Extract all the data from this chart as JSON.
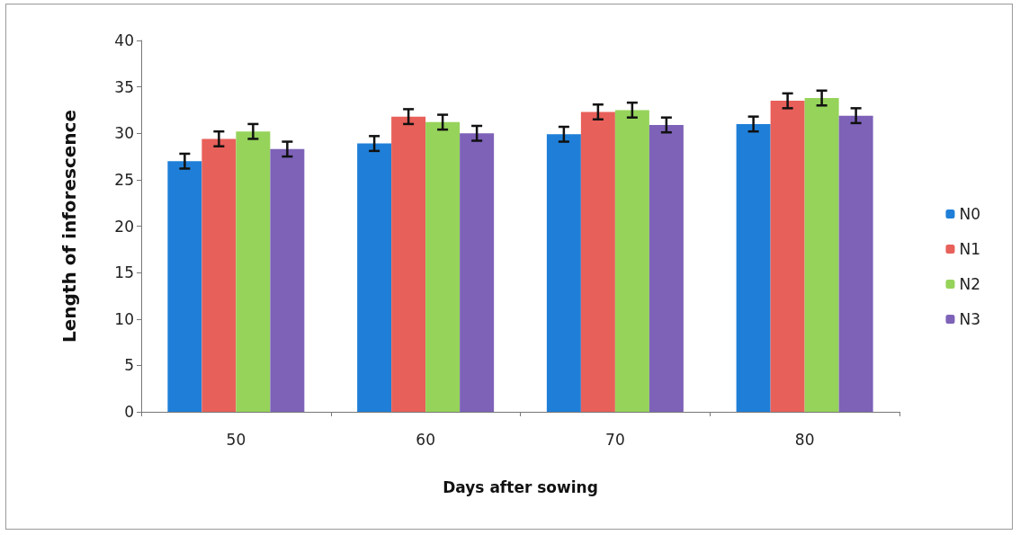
{
  "chart_data": {
    "type": "bar",
    "xlabel": "Days after sowing",
    "ylabel": "Length of inforescence",
    "categories": [
      "50",
      "60",
      "70",
      "80"
    ],
    "series": [
      {
        "name": "N0",
        "color": "#1f7fd8",
        "values": [
          27.0,
          28.9,
          29.9,
          31.0
        ],
        "errors": [
          0.8,
          0.8,
          0.8,
          0.8
        ]
      },
      {
        "name": "N1",
        "color": "#e8605a",
        "values": [
          29.4,
          31.8,
          32.3,
          33.5
        ],
        "errors": [
          0.8,
          0.8,
          0.8,
          0.8
        ]
      },
      {
        "name": "N2",
        "color": "#96d35a",
        "values": [
          30.2,
          31.2,
          32.5,
          33.8
        ],
        "errors": [
          0.8,
          0.8,
          0.8,
          0.8
        ]
      },
      {
        "name": "N3",
        "color": "#7d62b8",
        "values": [
          28.3,
          30.0,
          30.9,
          31.9
        ],
        "errors": [
          0.8,
          0.8,
          0.8,
          0.8
        ]
      }
    ],
    "ylim": [
      0,
      40
    ],
    "yticks": [
      0,
      5,
      10,
      15,
      20,
      25,
      30,
      35,
      40
    ],
    "grid": false,
    "legend": "right"
  }
}
